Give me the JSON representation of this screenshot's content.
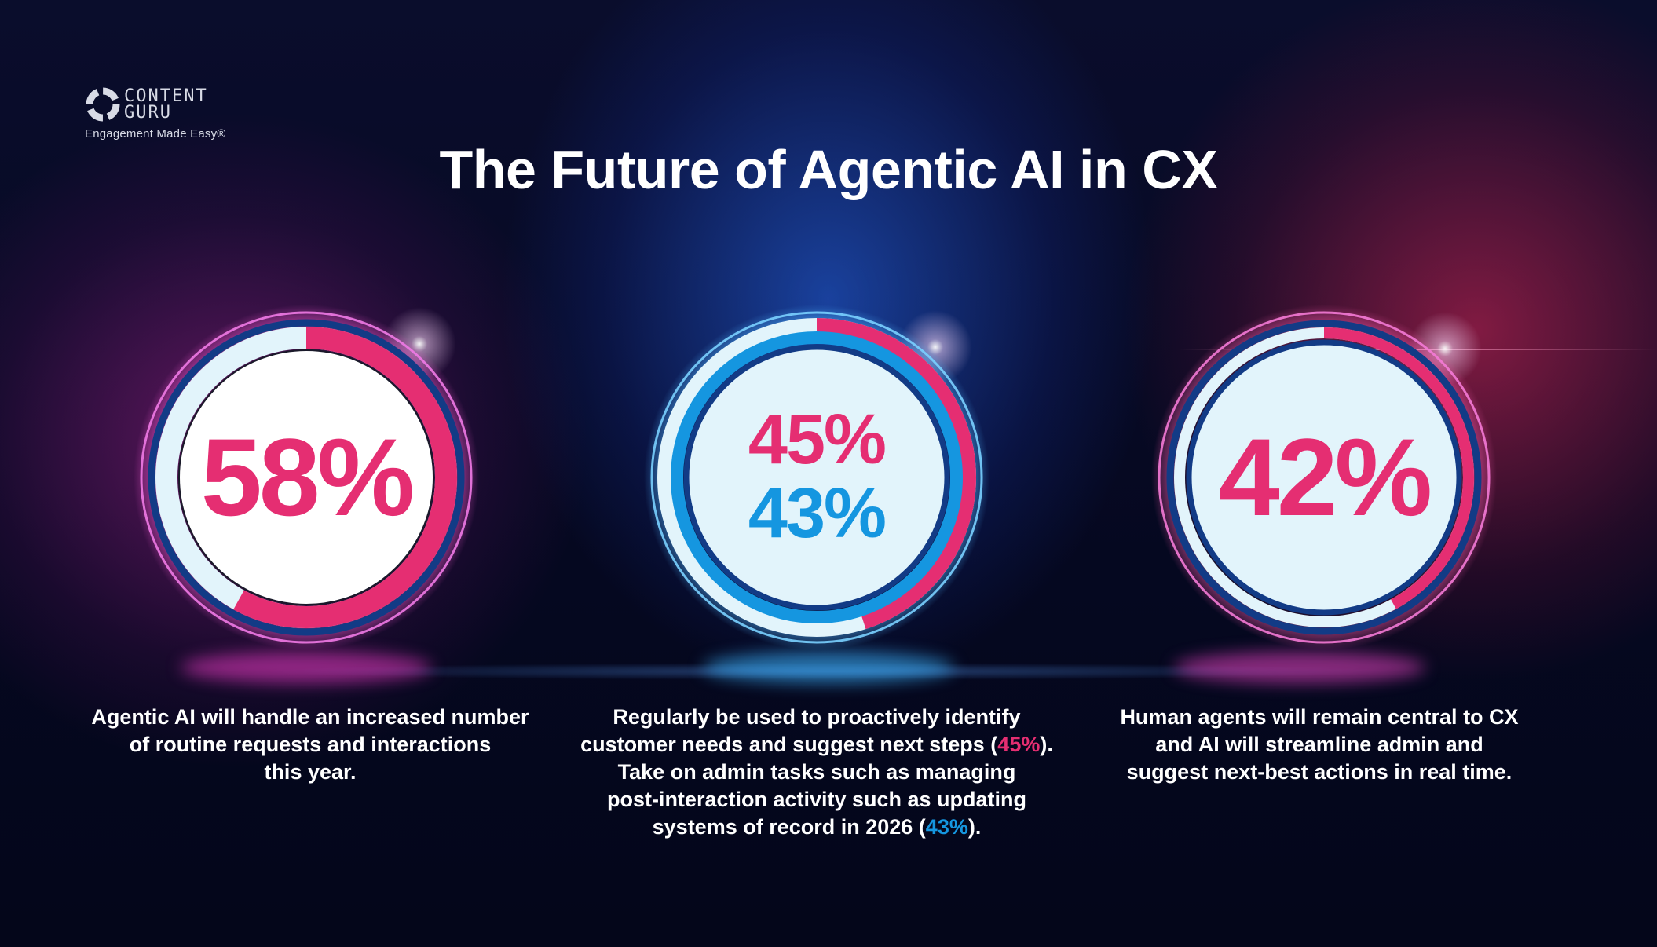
{
  "logo": {
    "brand_line1": "CONTENT",
    "brand_line2": "GURU",
    "tagline": "Engagement Made Easy®"
  },
  "title": "The Future of Agentic AI in CX",
  "colors": {
    "pink": "#e52e72",
    "blue": "#1596e0",
    "navy": "#123b86",
    "pale": "#e2f4fb"
  },
  "stats": [
    {
      "value": "58%",
      "progress_percent": 58,
      "description_lines": [
        "Agentic AI will handle an increased number",
        "of routine requests and interactions",
        "this year."
      ]
    },
    {
      "value_primary": "45%",
      "value_secondary": "43%",
      "progress_percent": 45,
      "description": {
        "line1": "Regularly be used to proactively identify",
        "line2_pre": "customer needs and suggest next steps (",
        "line2_highlight": "45%",
        "line2_post": ").",
        "line3": "Take on admin tasks such as managing",
        "line4": "post-interaction activity such as updating",
        "line5_pre": "systems of record in 2026 (",
        "line5_highlight": "43%",
        "line5_post": ")."
      }
    },
    {
      "value": "42%",
      "progress_percent": 42,
      "description_lines": [
        "Human agents will remain central to CX",
        "and AI will streamline admin and",
        "suggest next-best actions in real time."
      ]
    }
  ]
}
